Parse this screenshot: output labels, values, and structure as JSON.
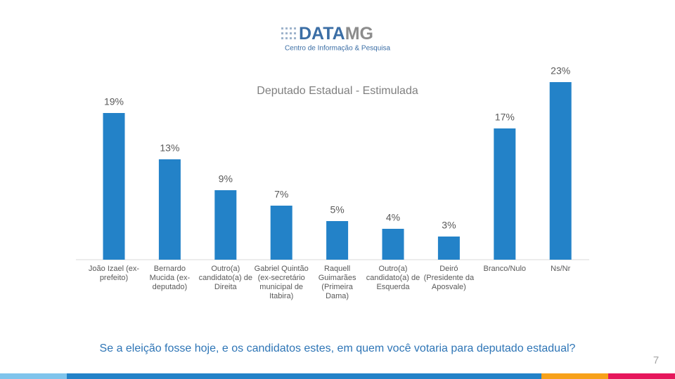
{
  "logo": {
    "name_main": "DATA",
    "name_accent": "MG",
    "tagline": "Centro de Informação & Pesquisa"
  },
  "chart_data": {
    "type": "bar",
    "title": "Deputado Estadual - Estimulada",
    "categories": [
      "João Izael (ex-prefeito)",
      "Bernardo Mucida (ex-deputado)",
      "Outro(a) candidato(a) de Direita",
      "Gabriel Quintão (ex-secretário municipal de Itabira)",
      "Raquell Guimarães (Primeira Dama)",
      "Outro(a) candidato(a) de Esquerda",
      "Deiró (Presidente da Aposvale)",
      "Branco/Nulo",
      "Ns/Nr"
    ],
    "values": [
      19,
      13,
      9,
      7,
      5,
      4,
      3,
      17,
      23
    ],
    "value_labels": [
      "19%",
      "13%",
      "9%",
      "7%",
      "5%",
      "4%",
      "3%",
      "17%",
      "23%"
    ],
    "color": "#2382c8"
  },
  "question": "Se a eleição fosse hoje, e os candidatos estes, em quem você votaria para deputado estadual?",
  "page_number": "7"
}
